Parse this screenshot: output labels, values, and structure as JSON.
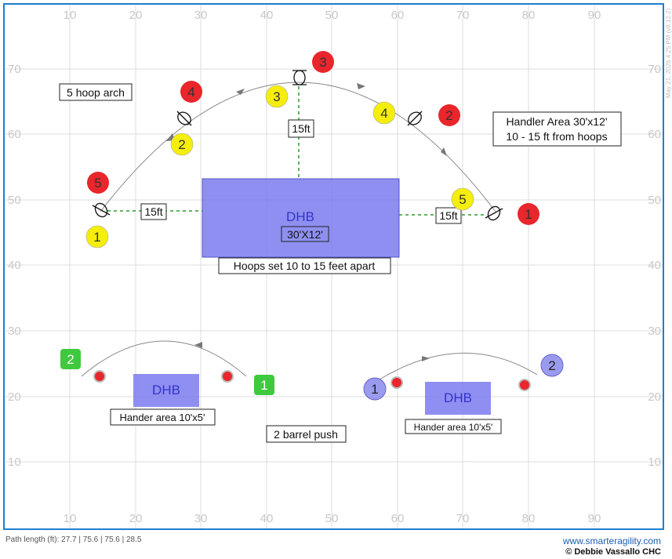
{
  "course": {
    "timestamp": "May 21, 2026 4:25 PM (v8.12.2)",
    "x_ticks": [
      "10",
      "20",
      "30",
      "40",
      "50",
      "60",
      "70",
      "80",
      "90"
    ],
    "y_ticks": [
      "70",
      "60",
      "50",
      "40",
      "30",
      "20",
      "10"
    ],
    "labels": {
      "arch": "5 hoop arch",
      "handler_area_1": "Handler Area 30'x12'",
      "handler_area_2": "10 - 15 ft from hoops",
      "hoops_apart": "Hoops set 10 to 15 feet apart",
      "dist_left": "15ft",
      "dist_top": "15ft",
      "dist_right": "15ft",
      "barrel_push": "2 barrel push",
      "hander_area_left": "Hander area 10'x5'",
      "hander_area_right": "Hander area 10'x5'"
    },
    "dhb_main": {
      "title": "DHB",
      "size": "30'X12'"
    },
    "dhb_left": "DHB",
    "dhb_right": "DHB",
    "red_numbers": [
      "1",
      "2",
      "3",
      "4",
      "5"
    ],
    "yellow_numbers": [
      "1",
      "2",
      "3",
      "4",
      "5"
    ],
    "green_numbers": [
      "1",
      "2"
    ],
    "blue_numbers": [
      "1",
      "2"
    ],
    "colors": {
      "red": "#e8262b",
      "yellow": "#f5ee0a",
      "green": "#3ec93e",
      "blue": "#9a9aee",
      "dhb": "#7b7bee",
      "border": "#1f7fd0"
    }
  },
  "footer": {
    "path_length": "Path length (ft): 27.7 | 75.6 | 75.6 | 28.5",
    "url": "www.smarteragility.com",
    "copyright": "© Debbie Vassallo CHC"
  }
}
